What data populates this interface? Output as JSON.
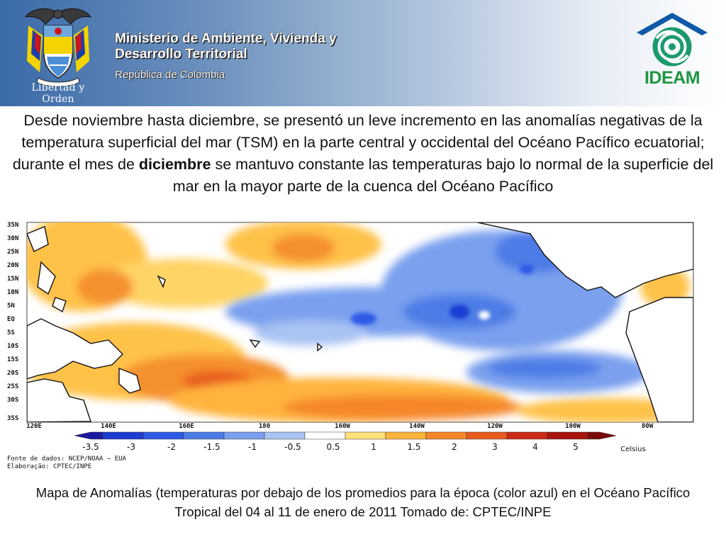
{
  "header": {
    "ministry_line1": "Ministerio de Ambiente, Vivienda y",
    "ministry_line2": "Desarrollo Territorial",
    "republic": "República de Colombia",
    "motto": "Libertad y Orden",
    "logo_text": "IDEAM",
    "crest_icon": "colombia-coat-of-arms-icon",
    "logo_icon": "ideam-logo-icon"
  },
  "paragraph": {
    "part1": "Desde noviembre hasta diciembre, se presentó un leve incremento en las anomalías negativas de la temperatura superficial del mar (TSM) en la parte central y occidental del Océano Pacífico ecuatorial; durante el mes de ",
    "bold": "diciembre",
    "part2": " se mantuvo constante las temperaturas bajo lo normal de la superficie del mar en la mayor parte de la cuenca del Océano Pacífico"
  },
  "map": {
    "lat_labels": [
      "35N",
      "30N",
      "25N",
      "20N",
      "15N",
      "10N",
      "5N",
      "EQ",
      "5S",
      "10S",
      "15S",
      "20S",
      "25S",
      "30S",
      "35S"
    ],
    "lon_labels": [
      "120E",
      "140E",
      "160E",
      "180",
      "160W",
      "140W",
      "120W",
      "100W",
      "80W"
    ],
    "scale_values": [
      "-3.5",
      "-3",
      "-2",
      "-1.5",
      "-1",
      "-0.5",
      "0.5",
      "1",
      "1.5",
      "2",
      "3",
      "4",
      "5"
    ],
    "scale_unit": "Celsius",
    "scale_colors": [
      "#1a1aa0",
      "#1e3cd2",
      "#2f5ae6",
      "#4d7be6",
      "#7aa0ee",
      "#a9c3f3",
      "#ffffff",
      "#ffe07a",
      "#ffb43c",
      "#f5872a",
      "#e85a1e",
      "#cc2a14",
      "#a8140c",
      "#7a0a0a"
    ],
    "source_line1": "Fonte de dados: NCEP/NOAA — EUA",
    "source_line2": "Elaboração: CPTEC/INPE"
  },
  "caption": "Mapa de Anomalías (temperaturas por debajo de los promedios para la época (color azul) en el Océano Pacífico Tropical del 04 al 11 de enero de 2011 Tomado de: CPTEC/INPE"
}
